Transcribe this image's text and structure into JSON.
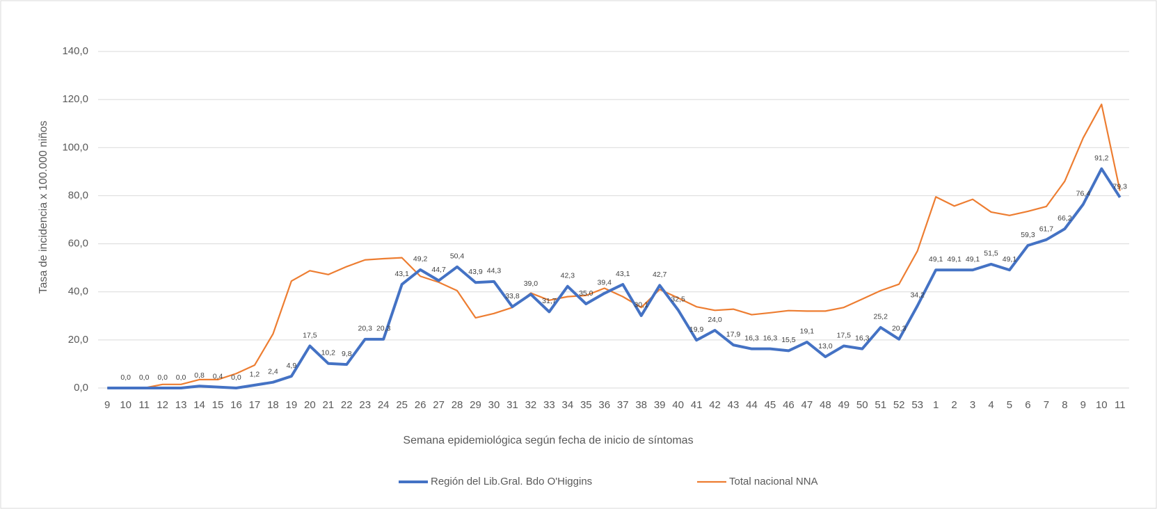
{
  "chart_data": {
    "type": "line",
    "y_label": "Tasa de incidencia x 100.000 niños",
    "x_label": "Semana epidemiológica según fecha de inicio de síntomas",
    "categories": [
      "9",
      "10",
      "11",
      "12",
      "13",
      "14",
      "15",
      "16",
      "17",
      "18",
      "19",
      "20",
      "21",
      "22",
      "23",
      "24",
      "25",
      "26",
      "27",
      "28",
      "29",
      "30",
      "31",
      "32",
      "33",
      "34",
      "35",
      "36",
      "37",
      "38",
      "39",
      "40",
      "41",
      "42",
      "43",
      "44",
      "45",
      "46",
      "47",
      "48",
      "49",
      "50",
      "51",
      "52",
      "53",
      "1",
      "2",
      "3",
      "4",
      "5",
      "6",
      "7",
      "8",
      "9",
      "10",
      "11"
    ],
    "series": [
      {
        "name": "Región del Lib.Gral. Bdo O'Higgins",
        "color": "#4472c4",
        "values": [
          0,
          0,
          0,
          0,
          0,
          0.8,
          0.4,
          0,
          1.2,
          2.4,
          4.9,
          17.5,
          10.2,
          9.8,
          20.3,
          20.3,
          43.1,
          49.2,
          44.7,
          50.4,
          43.9,
          44.3,
          33.8,
          39.0,
          31.7,
          42.3,
          35.0,
          39.4,
          43.1,
          30.1,
          42.7,
          32.5,
          19.9,
          24.0,
          17.9,
          16.3,
          16.3,
          15.5,
          19.1,
          13.0,
          17.5,
          16.3,
          25.2,
          20.3,
          34.2,
          49.1,
          49.1,
          49.1,
          51.5,
          49.1,
          59.3,
          61.7,
          66.2,
          76.4,
          91.2,
          79.3
        ],
        "value_labels": [
          null,
          "0,0",
          "0,0",
          "0,0",
          "0,0",
          "0,8",
          "0,4",
          "0,0",
          "1,2",
          "2,4",
          "4,9",
          "17,5",
          "10,2",
          "9,8",
          "20,3",
          "20,3",
          "43,1",
          "49,2",
          "44,7",
          "50,4",
          "43,9",
          "44,3",
          "33,8",
          "39,0",
          "31,7",
          "42,3",
          "35,0",
          "39,4",
          "43,1",
          "30,1",
          "42,7",
          "32,5",
          "19,9",
          "24,0",
          "17,9",
          "16,3",
          "16,3",
          "15,5",
          "19,1",
          "13,0",
          "17,5",
          "16,3",
          "25,2",
          "20,3",
          "34,2",
          "49,1",
          "49,1",
          "49,1",
          "51,5",
          "49,1",
          "59,3",
          "61,7",
          "66,2",
          "76,4",
          "91,2",
          "79,3"
        ]
      },
      {
        "name": "Total nacional NNA",
        "color": "#ed7d31",
        "values": [
          0,
          0,
          0,
          1.5,
          1.5,
          3.5,
          3.5,
          6,
          9.5,
          22.5,
          44.5,
          48.8,
          47.2,
          50.5,
          53.3,
          53.8,
          54.2,
          46.5,
          44,
          40.5,
          29.2,
          31,
          33.5,
          39.5,
          36.5,
          38,
          38.5,
          41.5,
          38,
          33.5,
          41,
          37.5,
          33.8,
          32.3,
          32.8,
          30.5,
          31.3,
          32.2,
          32,
          32,
          33.5,
          37,
          40.5,
          43.2,
          57,
          79.5,
          75.7,
          78.5,
          73.2,
          71.8,
          73.5,
          75.5,
          86,
          104,
          118,
          82
        ]
      }
    ],
    "ylim": [
      0,
      140
    ],
    "yticks": [
      {
        "value": 0,
        "label": "0,0"
      },
      {
        "value": 20,
        "label": "20,0"
      },
      {
        "value": 40,
        "label": "40,0"
      },
      {
        "value": 60,
        "label": "60,0"
      },
      {
        "value": 80,
        "label": "80,0"
      },
      {
        "value": 100,
        "label": "100,0"
      },
      {
        "value": 120,
        "label": "120,0"
      },
      {
        "value": 140,
        "label": "140,0"
      }
    ],
    "grid": true
  }
}
